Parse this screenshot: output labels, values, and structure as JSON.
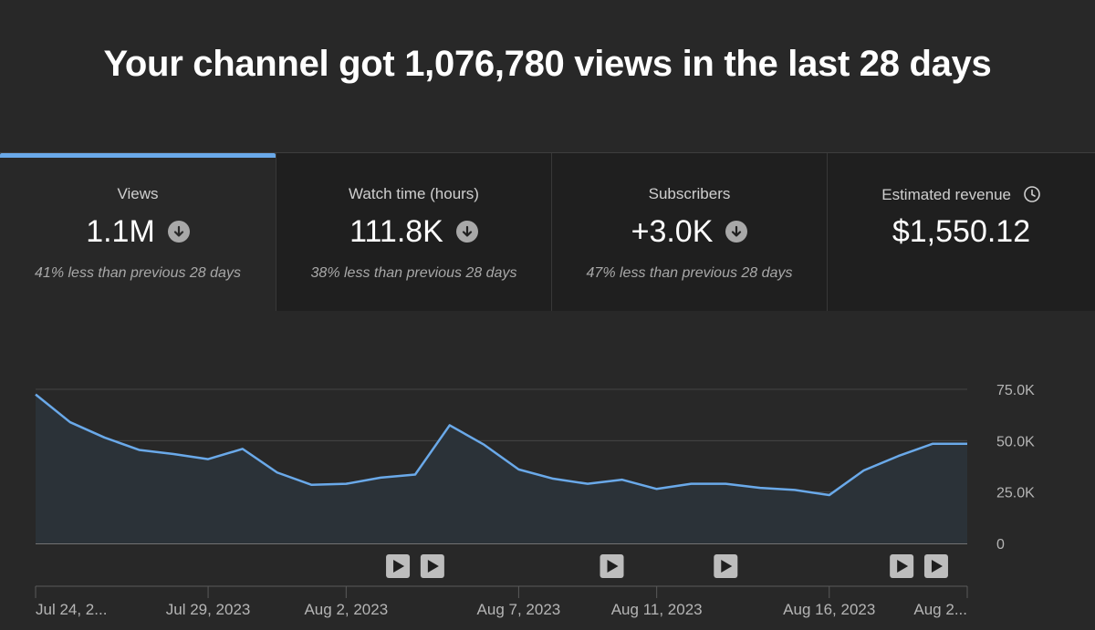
{
  "headline": "Your channel got 1,076,780 views in the last 28 days",
  "cards": [
    {
      "title": "Views",
      "value": "1.1M",
      "compare": "41% less than previous 28 days",
      "trend_icon": "arrow-down-circle-icon"
    },
    {
      "title": "Watch time (hours)",
      "value": "111.8K",
      "compare": "38% less than previous 28 days",
      "trend_icon": "arrow-down-circle-icon"
    },
    {
      "title": "Subscribers",
      "value": "+3.0K",
      "compare": "47% less than previous 28 days",
      "trend_icon": "arrow-down-circle-icon"
    },
    {
      "title": "Estimated revenue",
      "value": "$1,550.12",
      "title_icon": "clock-icon"
    }
  ],
  "colors": {
    "accent": "#6aa9e9",
    "line": "#6aa9e9",
    "area": "#2b3238",
    "background": "#282828"
  },
  "chart_data": {
    "type": "area",
    "metric": "Views",
    "x": [
      "Jul 24, 2023",
      "Jul 25, 2023",
      "Jul 26, 2023",
      "Jul 27, 2023",
      "Jul 28, 2023",
      "Jul 29, 2023",
      "Jul 30, 2023",
      "Jul 31, 2023",
      "Aug 1, 2023",
      "Aug 2, 2023",
      "Aug 3, 2023",
      "Aug 4, 2023",
      "Aug 5, 2023",
      "Aug 6, 2023",
      "Aug 7, 2023",
      "Aug 8, 2023",
      "Aug 9, 2023",
      "Aug 10, 2023",
      "Aug 11, 2023",
      "Aug 12, 2023",
      "Aug 13, 2023",
      "Aug 14, 2023",
      "Aug 15, 2023",
      "Aug 16, 2023",
      "Aug 17, 2023",
      "Aug 18, 2023",
      "Aug 19, 2023",
      "Aug 20, 2023"
    ],
    "values": [
      72500,
      59000,
      51500,
      45500,
      43500,
      41000,
      46000,
      34500,
      28500,
      29000,
      32000,
      33500,
      57500,
      48000,
      36000,
      31500,
      29000,
      31000,
      26500,
      29000,
      29000,
      27000,
      26000,
      23500,
      35500,
      42500,
      48500,
      48500
    ],
    "ylim": [
      0,
      75000
    ],
    "yticks": [
      "0",
      "25.0K",
      "50.0K",
      "75.0K"
    ],
    "yticks_values": [
      0,
      25000,
      50000,
      75000
    ],
    "xticks": [
      {
        "label": "Jul 24, 2...",
        "index": 0
      },
      {
        "label": "Jul 29, 2023",
        "index": 5
      },
      {
        "label": "Aug 2, 2023",
        "index": 9
      },
      {
        "label": "Aug 7, 2023",
        "index": 14
      },
      {
        "label": "Aug 11, 2023",
        "index": 18
      },
      {
        "label": "Aug 16, 2023",
        "index": 23
      },
      {
        "label": "Aug 2...",
        "index": 27
      }
    ],
    "video_markers": [
      10.5,
      11.5,
      16.7,
      20.0,
      25.1,
      26.1
    ],
    "grid": true
  }
}
